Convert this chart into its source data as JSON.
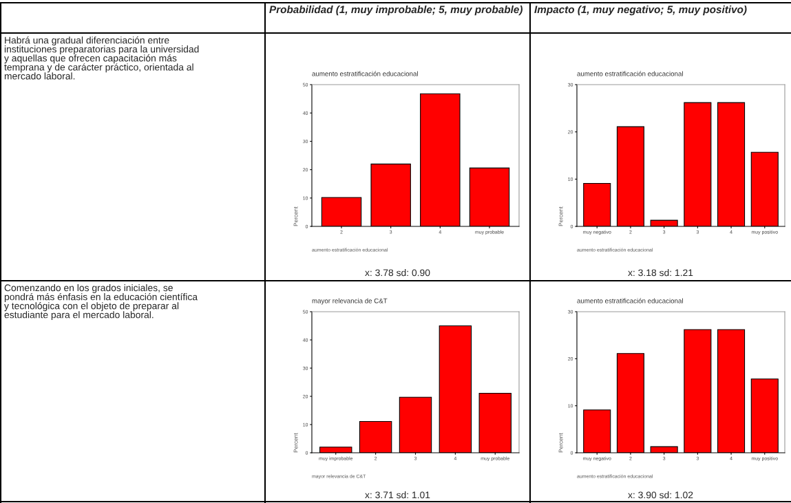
{
  "chart_data": [
    {
      "type": "bar",
      "title": "aumento estratificación educacional",
      "xlabel": "aumento estratificación educacional",
      "ylabel": "Percent",
      "categories": [
        "2",
        "3",
        "4",
        "muy probable"
      ],
      "values": [
        10.2,
        22.0,
        46.8,
        20.6
      ],
      "color": "#ff0000",
      "ylim": [
        0,
        50
      ],
      "yticks": [
        0,
        10,
        20,
        30,
        40,
        50
      ],
      "grid": false,
      "annotations": [
        "x: 3.78 sd: 0.90",
        "Habrá una gradual diferenciación entre instituciones preparatorias para la universidad y aquellas que ofrecen capacitación más temprana y de carácter práctico, orientada al mercado laboral.",
        "Probabilidad (1, muy improbable; 5, muy probable)"
      ]
    },
    {
      "type": "bar",
      "title": "aumento estratificación educacional",
      "xlabel": "aumento estratificación educacional",
      "ylabel": "Percent",
      "categories": [
        "muy negativo",
        "2",
        "3",
        "3",
        "4",
        "muy positivo"
      ],
      "values": [
        9.1,
        21.1,
        1.3,
        26.2,
        26.2,
        15.7
      ],
      "color": "#ff0000",
      "ylim": [
        0,
        30
      ],
      "yticks": [
        0,
        10,
        20,
        30
      ],
      "grid": false,
      "annotations": [
        "x: 3.18 sd: 1.21",
        "Impacto (1, muy negativo; 5, muy positivo)"
      ]
    },
    {
      "type": "bar",
      "title": "mayor relevancia de C&T",
      "xlabel": "mayor relevancia de C&T",
      "ylabel": "Percent",
      "categories": [
        "muy improbable",
        "2",
        "3",
        "4",
        "muy probable"
      ],
      "values": [
        2.0,
        11.1,
        19.7,
        45.0,
        21.1
      ],
      "color": "#ff0000",
      "ylim": [
        0,
        50
      ],
      "yticks": [
        0,
        10,
        20,
        30,
        40,
        50
      ],
      "grid": false,
      "annotations": [
        "x: 3.71 sd: 1.01",
        "Comenzando en los grados iniciales, se pondrá más énfasis en la educación científica y tecnológica con el objeto de preparar al estudiante para el mercado laboral."
      ]
    },
    {
      "type": "bar",
      "title": "aumento estratificación educacional",
      "xlabel": "aumento estratificación educacional",
      "ylabel": "Percent",
      "categories": [
        "muy negativo",
        "2",
        "3",
        "3",
        "4",
        "muy positivo"
      ],
      "values": [
        9.1,
        21.1,
        1.3,
        26.2,
        26.2,
        15.7
      ],
      "color": "#ff0000",
      "ylim": [
        0,
        30
      ],
      "yticks": [
        0,
        10,
        20,
        30
      ],
      "grid": false,
      "annotations": [
        "x: 3.90 sd: 1.02"
      ]
    }
  ]
}
